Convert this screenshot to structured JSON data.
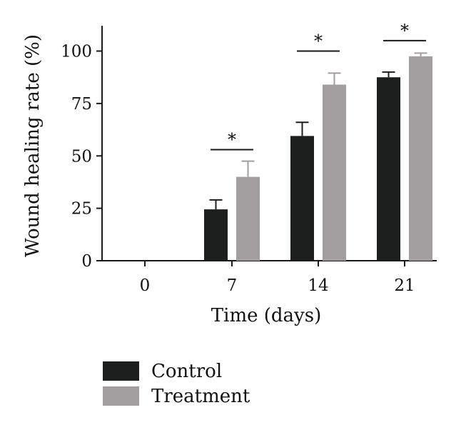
{
  "chart_data": {
    "type": "bar",
    "title": "",
    "xlabel": "Time (days)",
    "ylabel": "Wound healing rate (%)",
    "categories": [
      "0",
      "7",
      "14",
      "21"
    ],
    "ylim": [
      0,
      110
    ],
    "yticks": [
      "0",
      "25",
      "50",
      "75",
      "100"
    ],
    "series": [
      {
        "name": "Control",
        "color": "#1c1f1d",
        "values": [
          0,
          24.5,
          59.5,
          87.5
        ],
        "errors": [
          0,
          4.5,
          6.5,
          2.5
        ]
      },
      {
        "name": "Treatment",
        "color": "#a29d9f",
        "values": [
          0,
          40,
          84,
          97.5
        ],
        "errors": [
          0,
          7.5,
          5.5,
          1.5
        ]
      }
    ],
    "significance": [
      {
        "category": "7",
        "label": "*",
        "y": 53
      },
      {
        "category": "14",
        "label": "*",
        "y": 100
      },
      {
        "category": "21",
        "label": "*",
        "y": 105
      }
    ],
    "grid": false,
    "legend_position": "bottom-left"
  }
}
